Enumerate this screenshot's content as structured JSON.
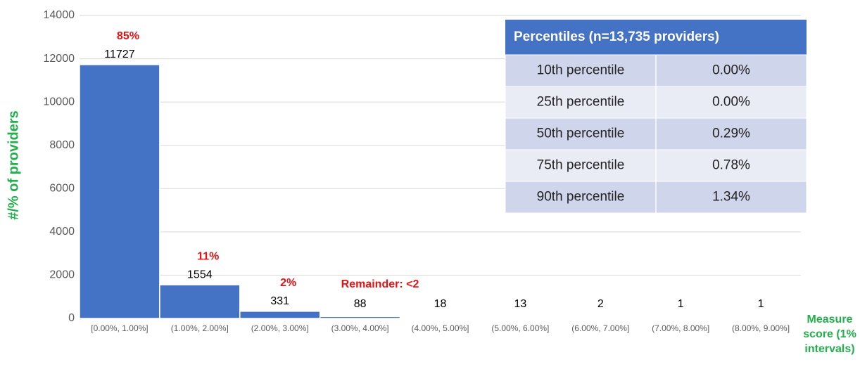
{
  "chart_data": {
    "type": "bar",
    "categories": [
      "[0.00%, 1.00%]",
      "(1.00%, 2.00%]",
      "(2.00%, 3.00%]",
      "(3.00%, 4.00%]",
      "(4.00%, 5.00%]",
      "(5.00%, 6.00%]",
      "(6.00%, 7.00%]",
      "(7.00%, 8.00%]",
      "(8.00%, 9.00%]"
    ],
    "values": [
      11727,
      1554,
      331,
      88,
      18,
      13,
      2,
      1,
      1
    ],
    "percent_labels": [
      "85%",
      "11%",
      "2%"
    ],
    "remainder_note": "Remainder: <2",
    "color": "#4472c4",
    "ylabel": "#/% of providers",
    "xlabel": "Measure score (1% intervals)",
    "ylim": [
      0,
      14000
    ],
    "yticks": [
      0,
      2000,
      4000,
      6000,
      8000,
      10000,
      12000,
      14000
    ],
    "grid": true
  },
  "table": {
    "title": "Percentiles (n=13,735 providers)",
    "rows": [
      [
        "10th percentile",
        "0.00%"
      ],
      [
        "25th percentile",
        "0.00%"
      ],
      [
        "50th percentile",
        "0.29%"
      ],
      [
        "75th percentile",
        "0.78%"
      ],
      [
        "90th percentile",
        "1.34%"
      ]
    ]
  }
}
